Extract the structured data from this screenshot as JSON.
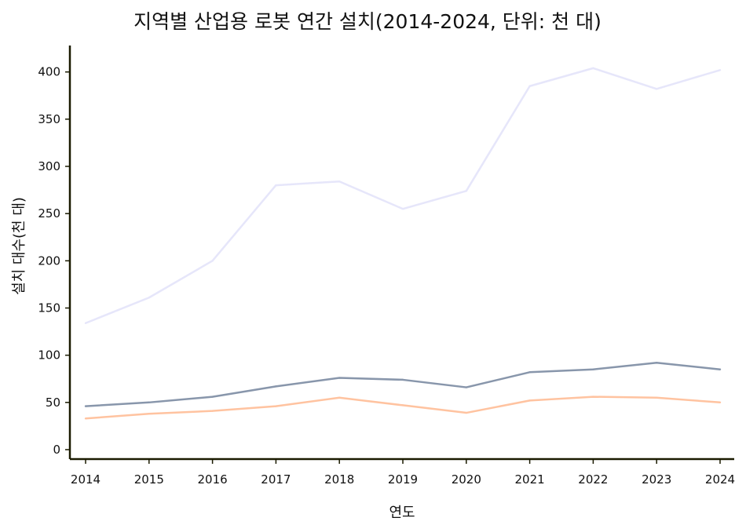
{
  "chart_data": {
    "type": "line",
    "title": "지역별 산업용 로봇 연간 설치(2014-2024, 단위: 천 대)",
    "xlabel": "연도",
    "ylabel": "설치 대수(천 대)",
    "x": [
      "2014",
      "2015",
      "2016",
      "2017",
      "2018",
      "2019",
      "2020",
      "2021",
      "2022",
      "2023",
      "2024"
    ],
    "yticks": [
      "0",
      "50",
      "100",
      "150",
      "200",
      "250",
      "300",
      "350",
      "400"
    ],
    "ylim": [
      -10,
      428
    ],
    "grid": false,
    "legend": "none",
    "series": [
      {
        "color": "#e6e6fa",
        "values": [
          134,
          161,
          200,
          280,
          284,
          255,
          274,
          385,
          404,
          382,
          402
        ]
      },
      {
        "color": "#8896ab",
        "values": [
          46,
          50,
          56,
          67,
          76,
          74,
          66,
          82,
          85,
          92,
          85
        ]
      },
      {
        "color": "#ffc3a0",
        "values": [
          33,
          38,
          41,
          46,
          55,
          47,
          39,
          52,
          56,
          55,
          50
        ]
      }
    ]
  }
}
